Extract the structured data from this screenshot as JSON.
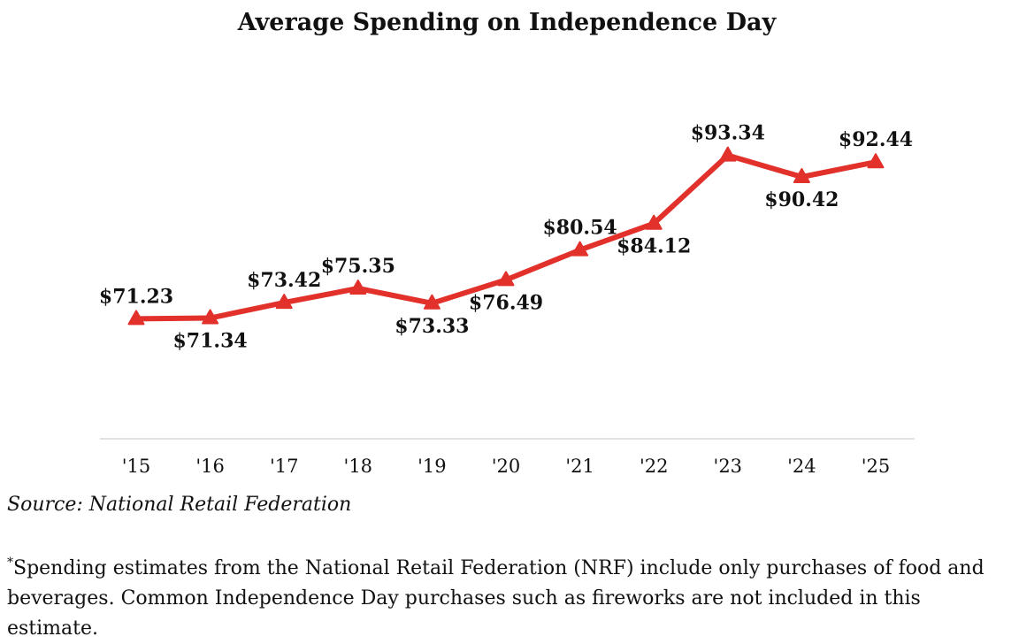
{
  "chart_data": {
    "type": "line",
    "title": "Average Spending on Independence Day",
    "categories": [
      "'15",
      "'16",
      "'17",
      "'18",
      "'19",
      "'20",
      "'21",
      "'22",
      "'23",
      "'24",
      "'25"
    ],
    "series": [
      {
        "name": "Average Spending",
        "values": [
          71.23,
          71.34,
          73.42,
          75.35,
          73.33,
          76.49,
          80.54,
          84.12,
          93.34,
          90.42,
          92.44
        ],
        "labels": [
          "$71.23",
          "$71.34",
          "$73.42",
          "$75.35",
          "$73.33",
          "$76.49",
          "$80.54",
          "$84.12",
          "$93.34",
          "$90.42",
          "$92.44"
        ],
        "label_positions": [
          "above",
          "below",
          "above",
          "above",
          "below",
          "below",
          "above",
          "below",
          "above",
          "below",
          "above"
        ],
        "color": "#e2302b",
        "marker": "triangle"
      }
    ],
    "xlabel": "",
    "ylabel": "",
    "ylim": [
      55,
      100
    ],
    "grid": false,
    "legend": "none"
  },
  "source": "Source: National Retail Federation",
  "footnote": {
    "marker": "*",
    "text": "Spending estimates from the National Retail Federation (NRF) include only purchases of food and beverages. Common Independence Day purchases such as fireworks are not included in this estimate."
  }
}
